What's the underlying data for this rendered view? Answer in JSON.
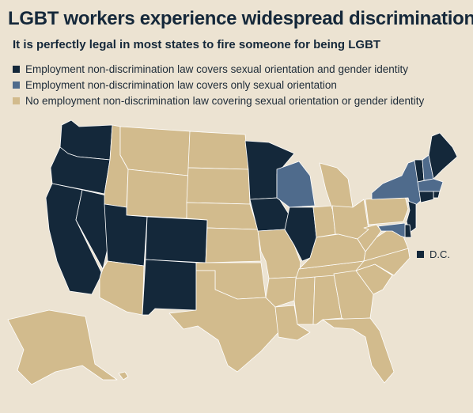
{
  "title": "LGBT workers experience widespread discrimination",
  "subtitle": "It is perfectly legal in most states to fire someone for being LGBT",
  "colors": {
    "full": "#14283a",
    "orientation_only": "#4f6b8c",
    "none": "#d2bb8d",
    "border": "#ffffff",
    "background": "#ece3d2"
  },
  "legend": [
    {
      "key": "full",
      "label": "Employment non-discrimination law covers sexual orientation and gender identity"
    },
    {
      "key": "orientation_only",
      "label": "Employment non-discrimination law covers only sexual orientation"
    },
    {
      "key": "none",
      "label": "No employment non-discrimination law covering sexual orientation or gender identity"
    }
  ],
  "dc_label": "D.C.",
  "dc_status": "full",
  "states": {
    "full": [
      "WA",
      "OR",
      "CA",
      "NV",
      "UT",
      "CO",
      "NM",
      "MN",
      "IA",
      "IL",
      "VT",
      "ME",
      "RI",
      "CT",
      "NJ",
      "DE",
      "DC"
    ],
    "orientation_only": [
      "WI",
      "NY",
      "NH",
      "MA",
      "MD"
    ],
    "none": [
      "ID",
      "MT",
      "WY",
      "ND",
      "SD",
      "NE",
      "KS",
      "OK",
      "TX",
      "AZ",
      "AK",
      "HI",
      "MO",
      "AR",
      "LA",
      "MS",
      "AL",
      "GA",
      "FL",
      "SC",
      "NC",
      "TN",
      "KY",
      "IN",
      "OH",
      "MI",
      "WV",
      "VA",
      "PA"
    ]
  }
}
